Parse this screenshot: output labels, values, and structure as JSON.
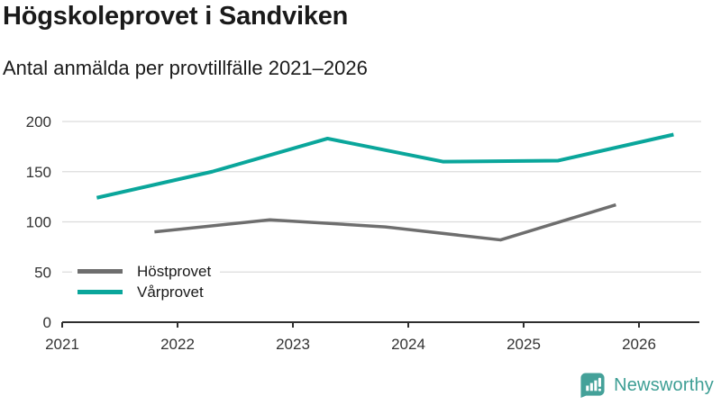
{
  "header": {
    "title": "Högskoleprovet i Sandviken",
    "subtitle": "Antal anmälda per provtillfälle 2021–2026"
  },
  "chart_data": {
    "type": "line",
    "title": "Högskoleprovet i Sandviken",
    "subtitle": "Antal anmälda per provtillfälle 2021–2026",
    "xlabel": "",
    "ylabel": "",
    "x_ticks": [
      2021,
      2022,
      2023,
      2024,
      2025,
      2026
    ],
    "y_ticks": [
      0,
      50,
      100,
      150,
      200
    ],
    "xlim": [
      2021,
      2026.55
    ],
    "ylim": [
      0,
      215
    ],
    "grid": "horizontal",
    "legend_position": "inside-bottom-left",
    "series": [
      {
        "name": "Höstprovet",
        "color": "#6e6e6e",
        "x": [
          2021.8,
          2022.8,
          2023.8,
          2024.8,
          2025.8
        ],
        "values": [
          90,
          102,
          95,
          82,
          117
        ]
      },
      {
        "name": "Vårprovet",
        "color": "#0aa69b",
        "x": [
          2021.3,
          2022.3,
          2023.3,
          2024.3,
          2025.3,
          2026.3
        ],
        "values": [
          124,
          150,
          183,
          160,
          161,
          187
        ]
      }
    ]
  },
  "footer": {
    "brand": "Newsworthy",
    "brand_color": "#3d9e94"
  }
}
